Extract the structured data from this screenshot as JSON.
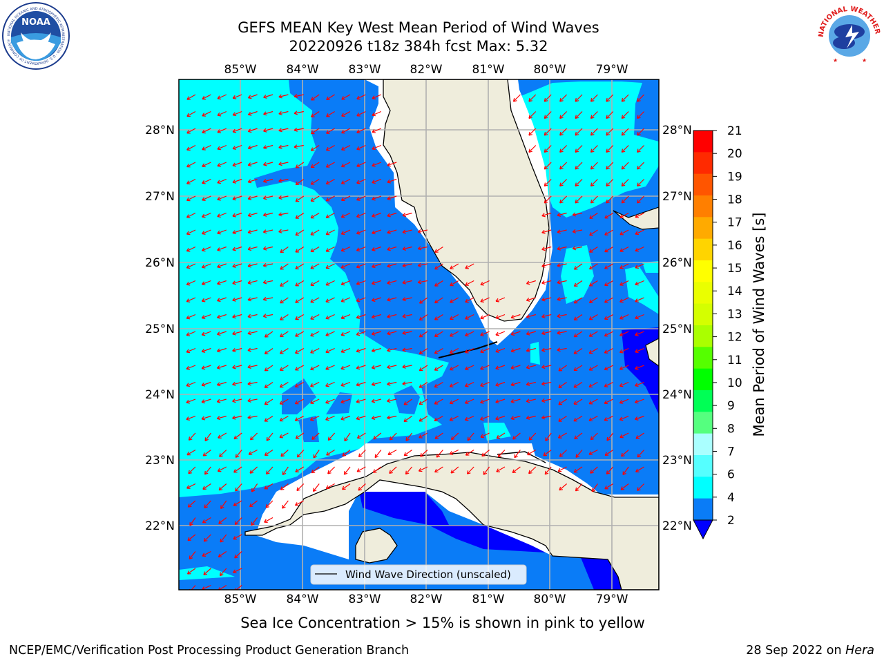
{
  "header": {
    "title_line1": "GEFS MEAN Key West Mean Period of Wind Waves",
    "title_line2": "20220926 t18z 384h fcst    Max: 5.32"
  },
  "logos": {
    "left": {
      "name": "noaa-logo",
      "text": "NOAA",
      "ring_text": "NATIONAL OCEANIC AND ATMOSPHERIC ADMINISTRATION · U.S. DEPARTMENT OF COMMERCE"
    },
    "right": {
      "name": "nws-logo",
      "ring_text": "NATIONAL WEATHER SERVICE"
    }
  },
  "map": {
    "lon_ticks_top": [
      "85°W",
      "84°W",
      "83°W",
      "82°W",
      "81°W",
      "80°W",
      "79°W"
    ],
    "lon_ticks_bottom": [
      "85°W",
      "84°W",
      "83°W",
      "82°W",
      "81°W",
      "80°W",
      "79°W"
    ],
    "lat_ticks_left": [
      "28°N",
      "27°N",
      "26°N",
      "25°N",
      "24°N",
      "23°N",
      "22°N"
    ],
    "lat_ticks_right": [
      "28°N",
      "27°N",
      "26°N",
      "25°N",
      "24°N",
      "23°N",
      "22°N"
    ],
    "legend_label": "Wind Wave Direction (unscaled)",
    "colors": {
      "land": "#efeddc",
      "cyan": "#00ffff",
      "blue": "#0a7cf7",
      "deep_blue": "#0000ff",
      "arrow": "#ff0000",
      "grid": "#b0b0b0"
    }
  },
  "colorbar": {
    "label": "Mean Period of Wind Waves [s]",
    "ticks": [
      "21",
      "20",
      "19",
      "18",
      "17",
      "16",
      "15",
      "14",
      "13",
      "12",
      "11",
      "10",
      "9",
      "8",
      "7",
      "6",
      "4",
      "2"
    ],
    "colors": [
      "#ff0000",
      "#ff2a00",
      "#ff5500",
      "#ff7f00",
      "#ffaa00",
      "#ffd400",
      "#ffff00",
      "#eaff00",
      "#d4ff00",
      "#aaff00",
      "#55ff00",
      "#00ff00",
      "#00ff55",
      "#55ff7f",
      "#aaffff",
      "#55ffff",
      "#00ffff",
      "#0a7cf7"
    ],
    "under_color": "#0000ff"
  },
  "footer": {
    "caption": "Sea Ice Concentration > 15% is shown in pink to yellow",
    "left": "NCEP/EMC/Verification Post Processing Product Generation Branch",
    "right_date": "28 Sep 2022 on ",
    "right_host": "Hera"
  }
}
